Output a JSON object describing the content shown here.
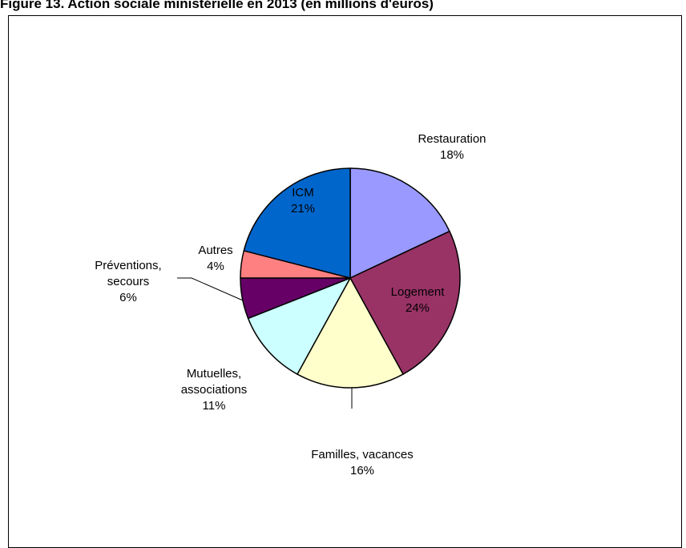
{
  "chart_data": {
    "type": "pie",
    "title": "Figure 13. Action sociale ministérielle en 2013 (en millions d'euros)",
    "start_angle_deg": 0,
    "direction": "clockwise",
    "slices": [
      {
        "id": "restauration",
        "label_lines": [
          "Restauration"
        ],
        "value_label": "18%",
        "value": 18,
        "color": "#9999ff"
      },
      {
        "id": "logement",
        "label_lines": [
          "Logement"
        ],
        "value_label": "24%",
        "value": 24,
        "color": "#993366"
      },
      {
        "id": "familles-vacances",
        "label_lines": [
          "Familles, vacances"
        ],
        "value_label": "16%",
        "value": 16,
        "color": "#ffffcc"
      },
      {
        "id": "mutuelles-associations",
        "label_lines": [
          "Mutuelles,",
          "associations"
        ],
        "value_label": "11%",
        "value": 11,
        "color": "#ccffff"
      },
      {
        "id": "preventions-secours",
        "label_lines": [
          "Préventions,",
          "secours"
        ],
        "value_label": "6%",
        "value": 6,
        "color": "#660066"
      },
      {
        "id": "autres",
        "label_lines": [
          "Autres"
        ],
        "value_label": "4%",
        "value": 4,
        "color": "#ff8080"
      },
      {
        "id": "icm",
        "label_lines": [
          "ICM"
        ],
        "value_label": "21%",
        "value": 21,
        "color": "#0066cc"
      }
    ]
  }
}
